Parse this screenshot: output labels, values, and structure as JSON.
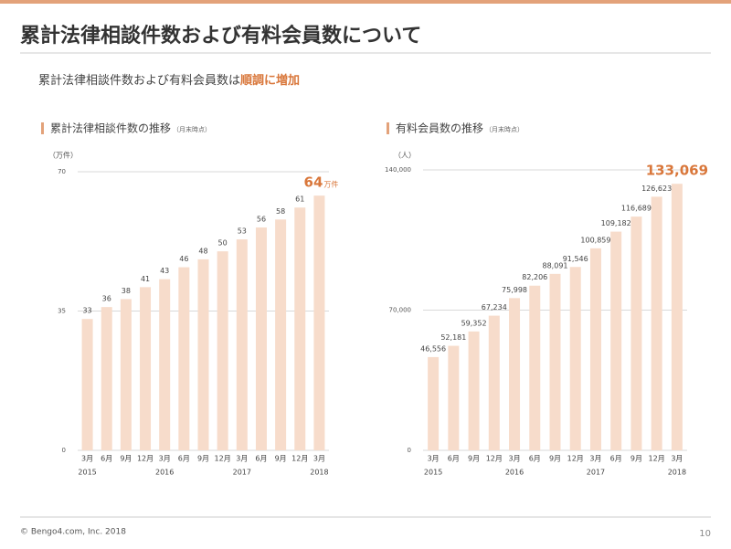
{
  "slide_title": "累計法律相談件数および有料会員数について",
  "lead": "累計法律相談件数および有料会員数は",
  "lead_highlight": "順調に増加",
  "footer": "© Bengo4.com, Inc. 2018",
  "page_number": "10",
  "chart_data": [
    {
      "type": "bar",
      "title": "累計法律相談件数の推移",
      "subtitle": "（月末時点）",
      "unit_label": "（万件）",
      "categories": [
        "3月",
        "6月",
        "9月",
        "12月",
        "3月",
        "6月",
        "9月",
        "12月",
        "3月",
        "6月",
        "9月",
        "12月",
        "3月"
      ],
      "year_labels": [
        "2015",
        null,
        null,
        null,
        "2016",
        null,
        null,
        null,
        "2017",
        null,
        null,
        null,
        "2018"
      ],
      "values": [
        33,
        36,
        38,
        41,
        43,
        46,
        48,
        50,
        53,
        56,
        58,
        61,
        64
      ],
      "annotation": "万件",
      "color": "#f7dccb",
      "highlight_color": "#d9773b",
      "ylim": [
        0,
        70
      ],
      "yticks": [
        0,
        35,
        70
      ],
      "grid": true
    },
    {
      "type": "bar",
      "title": "有料会員数の推移",
      "subtitle": "（月末時点）",
      "unit_label": "（人）",
      "categories": [
        "3月",
        "6月",
        "9月",
        "12月",
        "3月",
        "6月",
        "9月",
        "12月",
        "3月",
        "6月",
        "9月",
        "12月",
        "3月"
      ],
      "year_labels": [
        "2015",
        null,
        null,
        null,
        "2016",
        null,
        null,
        null,
        "2017",
        null,
        null,
        null,
        "2018"
      ],
      "values": [
        46556,
        52181,
        59352,
        67234,
        75998,
        82206,
        88091,
        91546,
        100859,
        109182,
        116689,
        126623,
        133069
      ],
      "value_labels": [
        "46,556",
        "52,181",
        "59,352",
        "67,234",
        "75,998",
        "82,206",
        "88,091",
        "91,546",
        "100,859",
        "109,182",
        "116,689",
        "126,623",
        "133,069"
      ],
      "color": "#f7dccb",
      "highlight_color": "#d9773b",
      "ylim": [
        0,
        140000
      ],
      "yticks": [
        0,
        {
          "value": 70000,
          "label": "70,000"
        },
        {
          "value": 140000,
          "label": "140,000"
        }
      ],
      "grid": true
    }
  ]
}
